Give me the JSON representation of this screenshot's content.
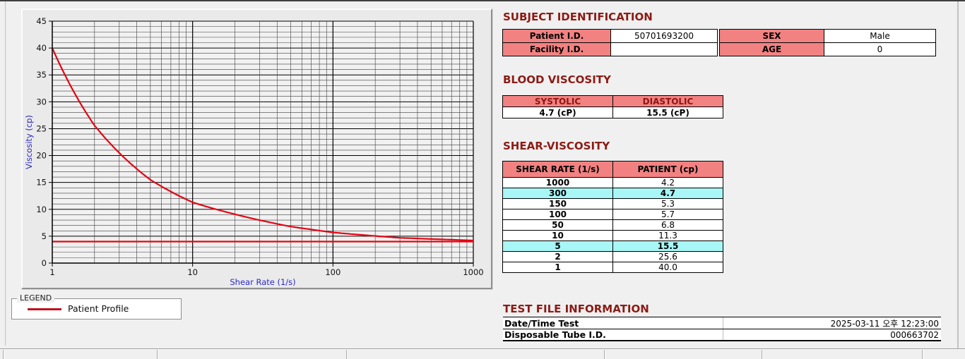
{
  "titles": {
    "subject_identification": "SUBJECT IDENTIFICATION",
    "blood_viscosity": "BLOOD VISCOSITY",
    "shear_viscosity": "SHEAR-VISCOSITY",
    "test_file_information": "TEST FILE INFORMATION"
  },
  "subject": {
    "patient_id_label": "Patient I.D.",
    "patient_id_value": "50701693200",
    "facility_id_label": "Facility I.D.",
    "facility_id_value": "",
    "sex_label": "SEX",
    "sex_value": "Male",
    "age_label": "AGE",
    "age_value": "0"
  },
  "blood_viscosity": {
    "headers": [
      "SYSTOLIC",
      "DIASTOLIC"
    ],
    "values": [
      "4.7 (cP)",
      "15.5 (cP)"
    ]
  },
  "shear_viscosity": {
    "headers": [
      "SHEAR RATE (1/s)",
      "PATIENT (cp)"
    ],
    "rows": [
      {
        "rate": "1000",
        "patient": "4.2",
        "highlight": false
      },
      {
        "rate": "300",
        "patient": "4.7",
        "highlight": true
      },
      {
        "rate": "150",
        "patient": "5.3",
        "highlight": false
      },
      {
        "rate": "100",
        "patient": "5.7",
        "highlight": false
      },
      {
        "rate": "50",
        "patient": "6.8",
        "highlight": false
      },
      {
        "rate": "10",
        "patient": "11.3",
        "highlight": false
      },
      {
        "rate": "5",
        "patient": "15.5",
        "highlight": true
      },
      {
        "rate": "2",
        "patient": "25.6",
        "highlight": false
      },
      {
        "rate": "1",
        "patient": "40.0",
        "highlight": false
      }
    ]
  },
  "test_file": {
    "rows": [
      {
        "label": "Date/Time Test",
        "value": "2025-03-11  오후 12:23:00"
      },
      {
        "label": "Disposable Tube I.D.",
        "value": "000663702"
      }
    ]
  },
  "legend": {
    "box_label": "LEGEND",
    "entries": [
      {
        "label": "Patient Profile",
        "color": "#bf1120"
      }
    ]
  },
  "chart_data": {
    "type": "line",
    "x_scale": "log",
    "xlabel": "Shear Rate (1/s)",
    "ylabel": "Viscosity (cp)",
    "xlim": [
      1,
      1000
    ],
    "ylim": [
      0,
      45
    ],
    "x_ticks": [
      1,
      10,
      100,
      1000
    ],
    "y_ticks": [
      0,
      5,
      10,
      15,
      20,
      25,
      30,
      35,
      40,
      45
    ],
    "y_minor_step": 1,
    "grid": true,
    "legend_position": "below-left",
    "series": [
      {
        "name": "Patient Profile",
        "color": "#e30613",
        "points": [
          [
            1,
            40.0
          ],
          [
            2,
            25.6
          ],
          [
            5,
            15.5
          ],
          [
            10,
            11.3
          ],
          [
            50,
            6.8
          ],
          [
            100,
            5.7
          ],
          [
            150,
            5.3
          ],
          [
            300,
            4.7
          ],
          [
            1000,
            4.2
          ]
        ]
      }
    ],
    "reference_line": {
      "y": 4.0,
      "color": "#e30613"
    }
  },
  "colors": {
    "section_title": "#8b1b15",
    "table_header_pink": "#f28282",
    "highlight_cyan": "#a8f6f6",
    "axis_label_blue": "#2a2ac8",
    "curve_red": "#e30613",
    "legend_swatch_red": "#bf1120"
  }
}
